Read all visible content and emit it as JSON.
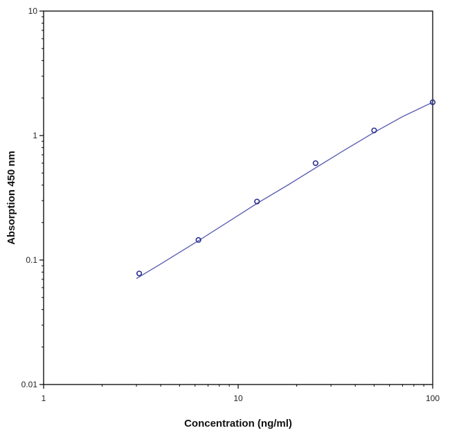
{
  "chart_data": {
    "type": "scatter",
    "title": "",
    "xlabel": "Concentration (ng/ml)",
    "ylabel": "Absorption 450 nm",
    "x_scale": "log",
    "y_scale": "log",
    "xlim": [
      1,
      100
    ],
    "ylim": [
      0.01,
      10
    ],
    "x_ticks": [
      "1",
      "10",
      "100"
    ],
    "y_ticks": [
      "0.01",
      "0.1",
      "1",
      "10"
    ],
    "grid": false,
    "legend": "none",
    "series": [
      {
        "x": [
          3.1,
          6.25,
          12.5,
          25,
          50,
          100
        ],
        "y": [
          0.078,
          0.145,
          0.295,
          0.6,
          1.1,
          1.85
        ]
      }
    ],
    "fit_curve": {
      "x": [
        3.0,
        4.0,
        6.25,
        10.0,
        12.5,
        18.0,
        25.0,
        35.0,
        50.0,
        70.0,
        100.0
      ],
      "y": [
        0.071,
        0.093,
        0.143,
        0.228,
        0.285,
        0.4,
        0.55,
        0.76,
        1.06,
        1.42,
        1.85
      ]
    },
    "colors": {
      "line": "#5b5fb0",
      "marker": "#2a2f8f",
      "axis": "#000000"
    }
  }
}
